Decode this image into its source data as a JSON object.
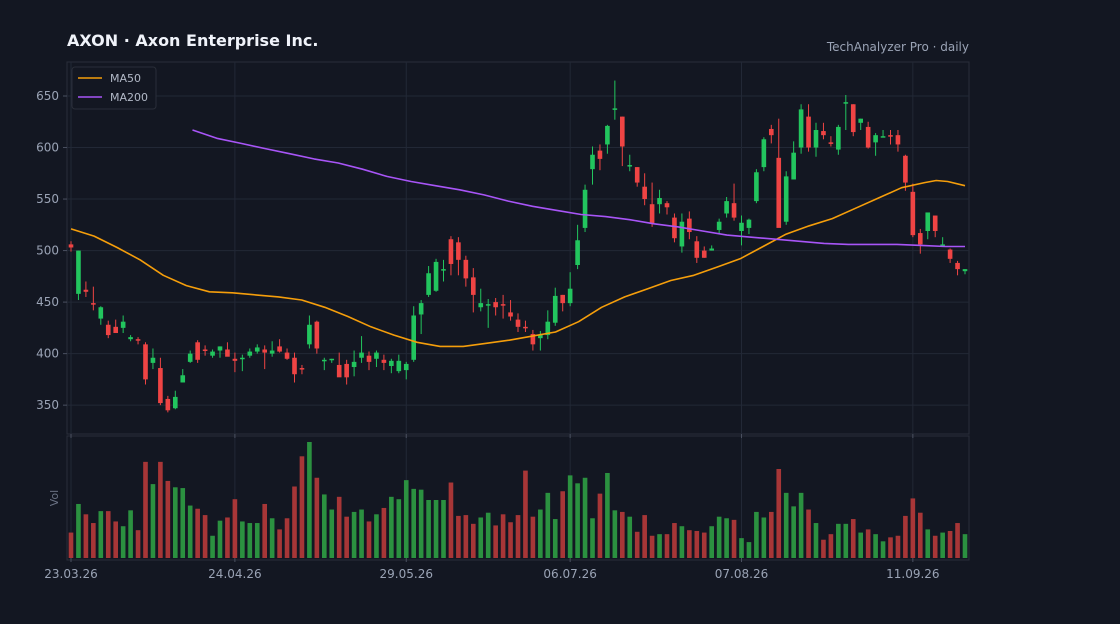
{
  "header": {
    "title": "AXON  ·  Axon Enterprise Inc.",
    "source": "TechAnalyzer Pro · daily"
  },
  "colors": {
    "background": "#131722",
    "up": "#22c55e",
    "down": "#ef4444",
    "ma50": "#f59e0b",
    "ma200": "#a855f7",
    "grid": "#222836",
    "text": "#9aa3b5"
  },
  "chart_data": {
    "type": "candlestick",
    "price_axis": {
      "ylim": [
        322,
        683
      ],
      "ticks": [
        350,
        400,
        450,
        500,
        550,
        600,
        650
      ]
    },
    "x_tick_labels": [
      {
        "index": 0,
        "label": "23.03.26"
      },
      {
        "index": 22,
        "label": "24.04.26"
      },
      {
        "index": 45,
        "label": "29.05.26"
      },
      {
        "index": 67,
        "label": "06.07.26"
      },
      {
        "index": 90,
        "label": "07.08.26"
      },
      {
        "index": 113,
        "label": "11.09.26"
      }
    ],
    "legend": {
      "position": "top-left",
      "entries": [
        "MA50",
        "MA200"
      ]
    },
    "volume_label": "Vol",
    "candles": [
      [
        506,
        509,
        499,
        503,
        32
      ],
      [
        458,
        500,
        452,
        500,
        68
      ],
      [
        462,
        470,
        455,
        460,
        55
      ],
      [
        449,
        465,
        442,
        448,
        44
      ],
      [
        434,
        446,
        428,
        445,
        59
      ],
      [
        428,
        432,
        415,
        418,
        59
      ],
      [
        426,
        433,
        420,
        420,
        46
      ],
      [
        425,
        437,
        420,
        431,
        40
      ],
      [
        414,
        418,
        412,
        416,
        60
      ],
      [
        414,
        416,
        409,
        413,
        35
      ],
      [
        409,
        411,
        370,
        375,
        121
      ],
      [
        391,
        405,
        385,
        396,
        93
      ],
      [
        386,
        396,
        350,
        352,
        121
      ],
      [
        356,
        359,
        343,
        345,
        97
      ],
      [
        347,
        364,
        346,
        358,
        89
      ],
      [
        372,
        385,
        372,
        379,
        88
      ],
      [
        392,
        403,
        391,
        400,
        66
      ],
      [
        411,
        413,
        391,
        394,
        62
      ],
      [
        404,
        408,
        398,
        403,
        54
      ],
      [
        398,
        404,
        396,
        402,
        28
      ],
      [
        403,
        407,
        396,
        407,
        47
      ],
      [
        404,
        411,
        400,
        397,
        51
      ],
      [
        395,
        401,
        382,
        393,
        74
      ],
      [
        395,
        399,
        383,
        396,
        46
      ],
      [
        398,
        405,
        396,
        402,
        44
      ],
      [
        402,
        409,
        400,
        406,
        44
      ],
      [
        404,
        408,
        385,
        401,
        68
      ],
      [
        400,
        412,
        397,
        403,
        50
      ],
      [
        407,
        414,
        401,
        402,
        36
      ],
      [
        401,
        405,
        394,
        395,
        50
      ],
      [
        396,
        401,
        372,
        380,
        90
      ],
      [
        386,
        389,
        380,
        385,
        128
      ],
      [
        409,
        437,
        405,
        428,
        146
      ],
      [
        431,
        432,
        400,
        405,
        101
      ],
      [
        393,
        396,
        384,
        394,
        80
      ],
      [
        394,
        395,
        391,
        395,
        61
      ],
      [
        389,
        401,
        380,
        377,
        77
      ],
      [
        390,
        394,
        370,
        377,
        52
      ],
      [
        387,
        403,
        378,
        392,
        58
      ],
      [
        396,
        417,
        391,
        401,
        61
      ],
      [
        398,
        402,
        384,
        392,
        46
      ],
      [
        395,
        403,
        387,
        401,
        55
      ],
      [
        394,
        399,
        384,
        391,
        63
      ],
      [
        388,
        395,
        381,
        393,
        77
      ],
      [
        383,
        399,
        381,
        393,
        74
      ],
      [
        384,
        392,
        375,
        390,
        98
      ],
      [
        394,
        446,
        392,
        437,
        87
      ],
      [
        438,
        452,
        419,
        449,
        86
      ],
      [
        457,
        485,
        455,
        478,
        73
      ],
      [
        461,
        492,
        460,
        489,
        73
      ],
      [
        482,
        491,
        470,
        482,
        73
      ],
      [
        511,
        514,
        476,
        487,
        95
      ],
      [
        508,
        513,
        476,
        491,
        53
      ],
      [
        491,
        495,
        465,
        473,
        54
      ],
      [
        474,
        483,
        440,
        457,
        43
      ],
      [
        445,
        463,
        441,
        449,
        51
      ],
      [
        448,
        453,
        425,
        448,
        57
      ],
      [
        450,
        454,
        437,
        445,
        41
      ],
      [
        448,
        457,
        434,
        447,
        55
      ],
      [
        440,
        452,
        432,
        436,
        45
      ],
      [
        433,
        439,
        421,
        426,
        54
      ],
      [
        426,
        432,
        421,
        425,
        110
      ],
      [
        419,
        423,
        403,
        409,
        52
      ],
      [
        415,
        422,
        403,
        418,
        61
      ],
      [
        418,
        442,
        414,
        431,
        82
      ],
      [
        430,
        464,
        427,
        456,
        49
      ],
      [
        457,
        457,
        441,
        449,
        84
      ],
      [
        449,
        479,
        446,
        463,
        104
      ],
      [
        486,
        525,
        482,
        510,
        94
      ],
      [
        522,
        564,
        518,
        559,
        101
      ],
      [
        579,
        601,
        564,
        593,
        50
      ],
      [
        597,
        603,
        578,
        589,
        81
      ],
      [
        603,
        622,
        594,
        621,
        107
      ],
      [
        638,
        665,
        627,
        638,
        60
      ],
      [
        630,
        630,
        582,
        601,
        58
      ],
      [
        582,
        593,
        577,
        583,
        52
      ],
      [
        581,
        581,
        562,
        566,
        33
      ],
      [
        562,
        575,
        544,
        550,
        54
      ],
      [
        545,
        566,
        523,
        526,
        28
      ],
      [
        545,
        559,
        536,
        551,
        30
      ],
      [
        546,
        548,
        535,
        542,
        30
      ],
      [
        532,
        536,
        508,
        512,
        44
      ],
      [
        504,
        536,
        498,
        528,
        40
      ],
      [
        531,
        538,
        511,
        518,
        35
      ],
      [
        509,
        514,
        488,
        493,
        34
      ],
      [
        500,
        504,
        493,
        493,
        32
      ],
      [
        500,
        505,
        500,
        502,
        40
      ],
      [
        520,
        531,
        516,
        528,
        52
      ],
      [
        536,
        552,
        532,
        548,
        50
      ],
      [
        546,
        565,
        529,
        532,
        48
      ],
      [
        519,
        534,
        505,
        527,
        25
      ],
      [
        522,
        531,
        516,
        530,
        20
      ],
      [
        548,
        579,
        546,
        576,
        58
      ],
      [
        581,
        610,
        577,
        608,
        51
      ],
      [
        618,
        622,
        604,
        612,
        58
      ],
      [
        590,
        628,
        523,
        522,
        112
      ],
      [
        528,
        577,
        525,
        572,
        82
      ],
      [
        569,
        606,
        569,
        595,
        65
      ],
      [
        600,
        642,
        594,
        637,
        82
      ],
      [
        630,
        642,
        596,
        600,
        61
      ],
      [
        600,
        624,
        591,
        617,
        44
      ],
      [
        616,
        624,
        608,
        612,
        23
      ],
      [
        605,
        611,
        601,
        604,
        30
      ],
      [
        598,
        622,
        593,
        620,
        43
      ],
      [
        643,
        651,
        617,
        644,
        43
      ],
      [
        642,
        642,
        611,
        615,
        49
      ],
      [
        624,
        628,
        617,
        628,
        32
      ],
      [
        620,
        625,
        599,
        600,
        36
      ],
      [
        605,
        614,
        592,
        612,
        30
      ],
      [
        610,
        617,
        610,
        611,
        21
      ],
      [
        612,
        617,
        603,
        611,
        26
      ],
      [
        612,
        617,
        596,
        603,
        28
      ],
      [
        592,
        593,
        558,
        566,
        53
      ],
      [
        557,
        565,
        513,
        515,
        75
      ],
      [
        517,
        521,
        497,
        506,
        57
      ],
      [
        519,
        534,
        511,
        537,
        36
      ],
      [
        534,
        534,
        513,
        519,
        28
      ],
      [
        506,
        513,
        505,
        506,
        32
      ],
      [
        501,
        502,
        488,
        492,
        34
      ],
      [
        488,
        490,
        476,
        482,
        44
      ],
      [
        480,
        482,
        477,
        482,
        30
      ]
    ],
    "ma50": [
      [
        0,
        521
      ],
      [
        4,
        514
      ],
      [
        8,
        503
      ],
      [
        12,
        491
      ],
      [
        16,
        476
      ],
      [
        20,
        466
      ],
      [
        24,
        460
      ],
      [
        28,
        459
      ],
      [
        32,
        457
      ],
      [
        36,
        455
      ],
      [
        40,
        452
      ],
      [
        44,
        445
      ],
      [
        48,
        436
      ],
      [
        52,
        426
      ],
      [
        56,
        418
      ],
      [
        60,
        411
      ],
      [
        64,
        407
      ],
      [
        68,
        407
      ],
      [
        72,
        410
      ],
      [
        76,
        413
      ],
      [
        80,
        417
      ],
      [
        84,
        421
      ],
      [
        88,
        431
      ],
      [
        92,
        445
      ],
      [
        96,
        455
      ],
      [
        100,
        463
      ],
      [
        104,
        471
      ],
      [
        108,
        476
      ],
      [
        112,
        484
      ],
      [
        116,
        492
      ],
      [
        120,
        504
      ],
      [
        124,
        516
      ],
      [
        128,
        524
      ],
      [
        132,
        531
      ],
      [
        136,
        541
      ],
      [
        140,
        551
      ],
      [
        144,
        561
      ],
      [
        148,
        566
      ],
      [
        150,
        568
      ],
      [
        152,
        567
      ],
      [
        155,
        563
      ]
    ],
    "ma200": [
      [
        25,
        617
      ],
      [
        30,
        609
      ],
      [
        35,
        604
      ],
      [
        40,
        599
      ],
      [
        45,
        594
      ],
      [
        50,
        589
      ],
      [
        55,
        585
      ],
      [
        60,
        579
      ],
      [
        65,
        572
      ],
      [
        70,
        567
      ],
      [
        75,
        563
      ],
      [
        80,
        559
      ],
      [
        85,
        554
      ],
      [
        90,
        548
      ],
      [
        95,
        543
      ],
      [
        100,
        539
      ],
      [
        105,
        535
      ],
      [
        110,
        533
      ],
      [
        115,
        530
      ],
      [
        120,
        526
      ],
      [
        125,
        523
      ],
      [
        130,
        519
      ],
      [
        135,
        515
      ],
      [
        140,
        513
      ],
      [
        145,
        511
      ],
      [
        150,
        509
      ],
      [
        155,
        507
      ],
      [
        160,
        506
      ],
      [
        165,
        506
      ],
      [
        170,
        506
      ],
      [
        175,
        505
      ],
      [
        180,
        504
      ],
      [
        184,
        504
      ]
    ]
  }
}
